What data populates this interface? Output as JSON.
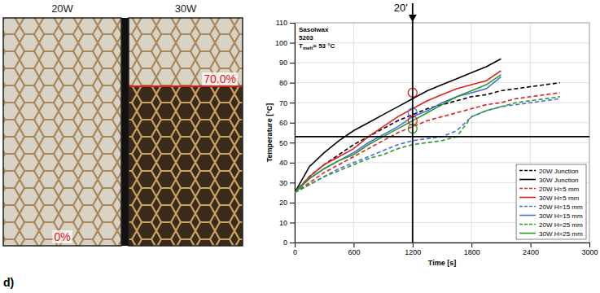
{
  "photos": {
    "panels": [
      {
        "title": "20W",
        "label": "0%"
      },
      {
        "title": "30W",
        "label": "70.0%"
      }
    ]
  },
  "panel_letter": "d)",
  "chart_data": {
    "type": "line",
    "x": [
      0,
      150,
      300,
      450,
      600,
      750,
      900,
      1050,
      1200,
      1350,
      1500,
      1650,
      1800,
      1950,
      2100,
      2250,
      2400,
      2550,
      2700
    ],
    "xlim": [
      0,
      3000
    ],
    "xticks": [
      0,
      600,
      1200,
      1800,
      2400,
      3000
    ],
    "ylim": [
      0,
      110
    ],
    "yticks": [
      0,
      10,
      20,
      30,
      40,
      50,
      60,
      70,
      80,
      90,
      100,
      110
    ],
    "x_label": "Time [s]",
    "y_label": "Temperature [°C]",
    "annotations": [
      "Sasolwax",
      "5203"
    ],
    "melt_label": {
      "symbol": "T",
      "subscript": "melt",
      "text": "= 53 °C"
    },
    "hline": 53,
    "vline": 1200,
    "vline_label": "20'",
    "circles": {
      "x": [
        1200,
        1200,
        1200,
        1200
      ],
      "y": [
        75,
        65,
        61,
        57
      ],
      "colors": [
        "#e02020",
        "#4a6fd8",
        "#e02020",
        "#2a9a2a"
      ]
    },
    "legend": "lower right",
    "series": [
      {
        "name": "20W Junction",
        "color": "#000000",
        "line_style": "dashed",
        "values": [
          25,
          33,
          39,
          44,
          49,
          53,
          57,
          61,
          64,
          67,
          69,
          71,
          73,
          74,
          76,
          77,
          78,
          79,
          80
        ]
      },
      {
        "name": "30W Junction",
        "color": "#000000",
        "line_style": "solid",
        "values": [
          25,
          38,
          45,
          51,
          56,
          60,
          64,
          68,
          72,
          76,
          79,
          82,
          85,
          88,
          92,
          null,
          null,
          null,
          null
        ]
      },
      {
        "name": "20W H=5 mm",
        "color": "#e02020",
        "line_style": "dashed",
        "values": [
          25,
          30,
          35,
          39,
          43,
          47,
          51,
          55,
          58,
          61,
          63,
          65,
          67,
          69,
          70,
          72,
          73,
          74,
          75
        ]
      },
      {
        "name": "30W H=5 mm",
        "color": "#e02020",
        "line_style": "solid",
        "values": [
          25,
          33,
          39,
          43,
          47,
          53,
          58,
          63,
          67,
          71,
          74,
          77,
          79,
          81,
          86,
          null,
          null,
          null,
          null
        ]
      },
      {
        "name": "20W H=15 mm",
        "color": "#4a6fd8",
        "line_style": "dashed",
        "values": [
          25,
          29,
          33,
          37,
          40,
          43,
          46,
          49,
          51,
          52,
          53,
          56,
          63,
          66,
          68,
          69,
          70,
          71,
          72
        ]
      },
      {
        "name": "30W H=15 mm",
        "color": "#4a6fd8",
        "line_style": "solid",
        "values": [
          25,
          32,
          37,
          41,
          45,
          50,
          54,
          58,
          63,
          66,
          70,
          73,
          75,
          77,
          83,
          null,
          null,
          null,
          null
        ]
      },
      {
        "name": "20W H=25 mm",
        "color": "#2a9a2a",
        "line_style": "dashed",
        "values": [
          25,
          29,
          33,
          36,
          39,
          42,
          44,
          47,
          49,
          50,
          51,
          53,
          63,
          66,
          68,
          70,
          71,
          72,
          73
        ]
      },
      {
        "name": "30W H=25 mm",
        "color": "#2a9a2a",
        "line_style": "solid",
        "values": [
          25,
          32,
          37,
          41,
          44,
          49,
          53,
          57,
          61,
          65,
          69,
          73,
          76,
          79,
          84,
          null,
          null,
          null,
          null
        ]
      }
    ]
  }
}
